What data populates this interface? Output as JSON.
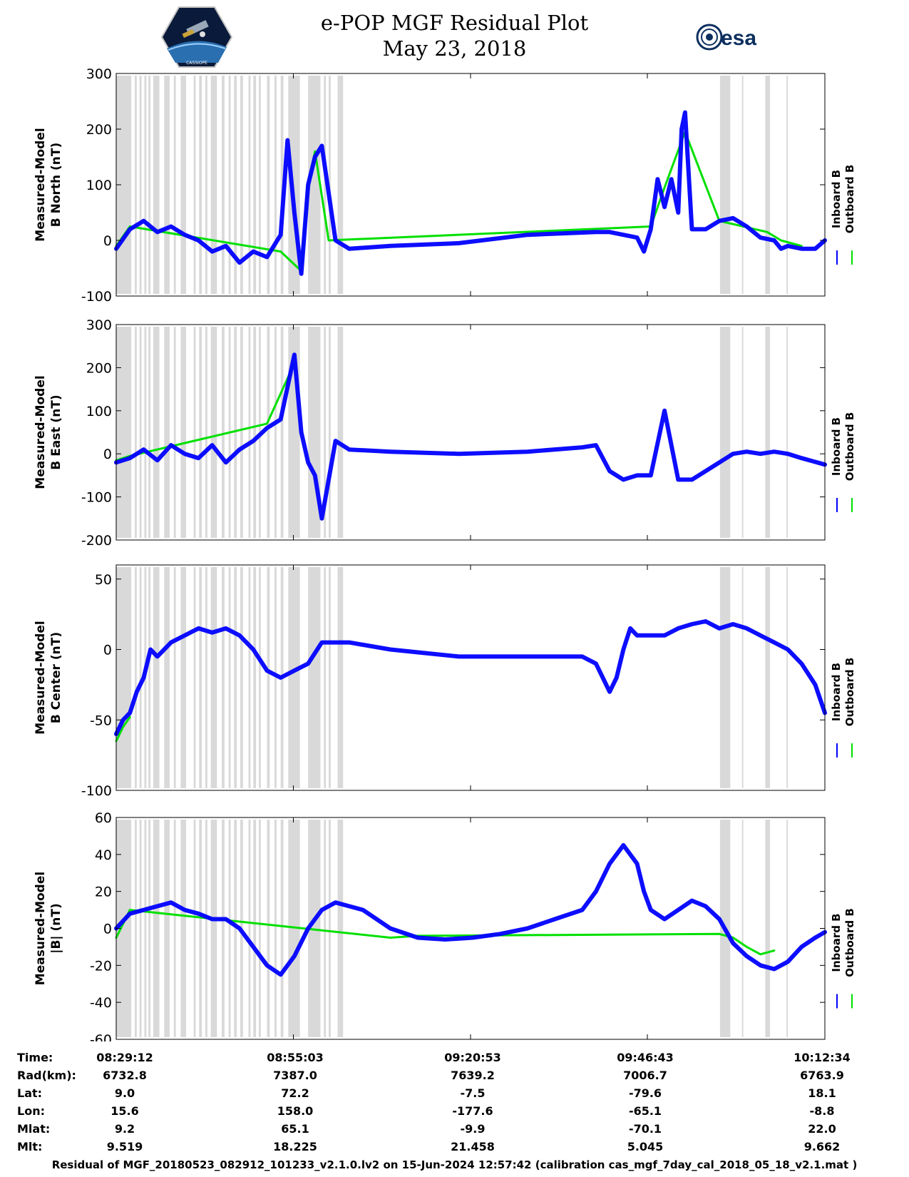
{
  "header": {
    "title_line1": "e-POP MGF Residual Plot",
    "title_line2": "May 23, 2018",
    "satellite_logo_caption": "CASSIOPE",
    "esa_logo_text": "esa"
  },
  "chart_data": [
    {
      "type": "line",
      "ylabel_line1": "Measured-Model",
      "ylabel_line2": "B North (nT)",
      "ylim": [
        -100,
        300
      ],
      "yticks": [
        "300",
        "200",
        "100",
        "0",
        "-100"
      ],
      "series": [
        {
          "name": "Inboard B",
          "color": "#0000ff",
          "x_minutes": [
            0,
            2,
            4,
            6,
            8,
            10,
            12,
            14,
            16,
            18,
            20,
            22,
            24,
            25,
            26,
            27,
            28,
            29,
            30,
            32,
            34,
            40,
            50,
            60,
            70,
            72,
            74,
            76,
            77,
            78,
            79,
            80,
            81,
            82,
            82.5,
            83,
            84,
            86,
            88,
            90,
            92,
            94,
            96,
            97,
            98,
            100,
            102,
            103.4
          ],
          "values": [
            -15,
            20,
            35,
            15,
            25,
            10,
            0,
            -20,
            -10,
            -40,
            -20,
            -30,
            10,
            180,
            50,
            -60,
            100,
            150,
            170,
            0,
            -15,
            -10,
            -5,
            10,
            15,
            15,
            10,
            5,
            -20,
            20,
            110,
            60,
            110,
            50,
            200,
            230,
            20,
            20,
            35,
            40,
            25,
            5,
            0,
            -15,
            -10,
            -15,
            -15,
            0
          ]
        },
        {
          "name": "Outboard B",
          "color": "#00e000",
          "x_minutes": [
            0,
            2,
            24,
            27,
            28,
            29,
            31,
            78,
            80,
            83,
            88,
            95,
            97,
            100
          ],
          "values": [
            -10,
            25,
            -20,
            -55,
            100,
            160,
            0,
            25,
            95,
            195,
            35,
            15,
            0,
            -10
          ]
        }
      ]
    },
    {
      "type": "line",
      "ylabel_line1": "Measured-Model",
      "ylabel_line2": "B East (nT)",
      "ylim": [
        -200,
        300
      ],
      "yticks": [
        "300",
        "200",
        "100",
        "0",
        "-100",
        "-200"
      ],
      "series": [
        {
          "name": "Inboard B",
          "color": "#0000ff",
          "x_minutes": [
            0,
            2,
            4,
            6,
            8,
            10,
            12,
            14,
            16,
            18,
            20,
            22,
            24,
            26,
            27,
            28,
            29,
            30,
            32,
            34,
            40,
            50,
            60,
            68,
            70,
            72,
            74,
            76,
            78,
            80,
            82,
            84,
            86,
            88,
            90,
            92,
            94,
            96,
            98,
            100,
            103.4
          ],
          "values": [
            -20,
            -10,
            10,
            -15,
            20,
            0,
            -10,
            20,
            -20,
            10,
            30,
            60,
            80,
            230,
            50,
            -20,
            -50,
            -150,
            30,
            10,
            5,
            0,
            5,
            15,
            20,
            -40,
            -60,
            -50,
            -50,
            100,
            -60,
            -60,
            -40,
            -20,
            0,
            5,
            0,
            5,
            0,
            -10,
            -25
          ]
        },
        {
          "name": "Outboard B",
          "color": "#00e000",
          "x_minutes": [
            0,
            2,
            22,
            26
          ],
          "values": [
            -15,
            -5,
            70,
            210
          ]
        }
      ]
    },
    {
      "type": "line",
      "ylabel_line1": "Measured-Model",
      "ylabel_line2": "B Center (nT)",
      "ylim": [
        -100,
        60
      ],
      "yticks": [
        "50",
        "0",
        "-50",
        "-100"
      ],
      "series": [
        {
          "name": "Inboard B",
          "color": "#0000ff",
          "x_minutes": [
            0,
            1,
            2,
            3,
            4,
            5,
            6,
            8,
            10,
            12,
            14,
            16,
            18,
            20,
            22,
            24,
            26,
            28,
            30,
            32,
            34,
            40,
            50,
            60,
            68,
            70,
            71,
            72,
            73,
            74,
            75,
            76,
            77,
            78,
            80,
            82,
            84,
            86,
            88,
            90,
            92,
            94,
            96,
            98,
            100,
            102,
            103.4
          ],
          "values": [
            -60,
            -50,
            -45,
            -30,
            -20,
            0,
            -5,
            5,
            10,
            15,
            12,
            15,
            10,
            0,
            -15,
            -20,
            -15,
            -10,
            5,
            5,
            5,
            0,
            -5,
            -5,
            -5,
            -10,
            -20,
            -30,
            -20,
            0,
            15,
            10,
            10,
            10,
            10,
            15,
            18,
            20,
            15,
            18,
            15,
            10,
            5,
            0,
            -10,
            -25,
            -45
          ]
        },
        {
          "name": "Outboard B",
          "color": "#00e000",
          "x_minutes": [
            0,
            1,
            2
          ],
          "values": [
            -65,
            -55,
            -48
          ]
        }
      ]
    },
    {
      "type": "line",
      "ylabel_line1": "Measured-Model",
      "ylabel_line2": "|B| (nT)",
      "ylim": [
        -60,
        60
      ],
      "yticks": [
        "60",
        "40",
        "20",
        "0",
        "-20",
        "-40",
        "-60"
      ],
      "series": [
        {
          "name": "Inboard B",
          "color": "#0000ff",
          "x_minutes": [
            0,
            2,
            4,
            6,
            8,
            10,
            12,
            14,
            16,
            18,
            20,
            22,
            24,
            26,
            28,
            30,
            32,
            34,
            36,
            40,
            44,
            48,
            52,
            56,
            60,
            64,
            68,
            70,
            72,
            74,
            76,
            77,
            78,
            80,
            82,
            84,
            86,
            88,
            90,
            92,
            94,
            96,
            98,
            100,
            102,
            103.4
          ],
          "values": [
            0,
            8,
            10,
            12,
            14,
            10,
            8,
            5,
            5,
            0,
            -10,
            -20,
            -25,
            -15,
            0,
            10,
            14,
            12,
            10,
            0,
            -5,
            -6,
            -5,
            -3,
            0,
            5,
            10,
            20,
            35,
            45,
            35,
            20,
            10,
            5,
            10,
            15,
            12,
            5,
            -8,
            -15,
            -20,
            -22,
            -18,
            -10,
            -5,
            -2
          ]
        },
        {
          "name": "Outboard B",
          "color": "#00e000",
          "x_minutes": [
            0,
            2,
            40,
            44,
            88,
            90,
            92,
            94,
            96
          ],
          "values": [
            -5,
            10,
            -5,
            -4,
            -3,
            -5,
            -10,
            -14,
            -12
          ]
        }
      ]
    }
  ],
  "legend": {
    "inboard_label": "Inboard B",
    "outboard_label": "Outboard B",
    "inboard_color": "#0000ff",
    "outboard_color": "#00e000"
  },
  "x_axis": {
    "range_minutes": [
      0,
      103.4
    ],
    "tick_minutes": [
      0,
      25.85,
      51.7,
      77.5,
      103.4
    ]
  },
  "shaded_intervals_minutes": [
    [
      0,
      2.2
    ],
    [
      2.7,
      3.0
    ],
    [
      3.4,
      3.7
    ],
    [
      4.1,
      4.4
    ],
    [
      4.7,
      5.0
    ],
    [
      5.4,
      6.3
    ],
    [
      7.0,
      7.8
    ],
    [
      8.4,
      8.7
    ],
    [
      9.4,
      10.2
    ],
    [
      11.3,
      11.6
    ],
    [
      12.1,
      12.5
    ],
    [
      13.0,
      13.3
    ],
    [
      13.8,
      14.7
    ],
    [
      15.4,
      15.8
    ],
    [
      16.4,
      16.7
    ],
    [
      17.2,
      17.6
    ],
    [
      18.1,
      18.5
    ],
    [
      19.3,
      19.6
    ],
    [
      20.0,
      20.4
    ],
    [
      20.8,
      21.1
    ],
    [
      22.0,
      22.4
    ],
    [
      23.1,
      23.4
    ],
    [
      24.0,
      24.4
    ],
    [
      25.1,
      26.8
    ],
    [
      28.0,
      29.8
    ],
    [
      30.3,
      30.6
    ],
    [
      31.0,
      31.3
    ],
    [
      32.3,
      33.1
    ],
    [
      88.1,
      89.6
    ],
    [
      91.3,
      91.5
    ],
    [
      94.7,
      95.4
    ],
    [
      97.8,
      98.0
    ]
  ],
  "info_table": {
    "labels": [
      "Time:",
      "Rad(km):",
      "Lat:",
      "Lon:",
      "Mlat:",
      "Mlt:"
    ],
    "columns": [
      {
        "time": "08:29:12",
        "rad": "6732.8",
        "lat": "9.0",
        "lon": "15.6",
        "mlat": "9.2",
        "mlt": "9.519"
      },
      {
        "time": "08:55:03",
        "rad": "7387.0",
        "lat": "72.2",
        "lon": "158.0",
        "mlat": "65.1",
        "mlt": "18.225"
      },
      {
        "time": "09:20:53",
        "rad": "7639.2",
        "lat": "-7.5",
        "lon": "-177.6",
        "mlat": "-9.9",
        "mlt": "21.458"
      },
      {
        "time": "09:46:43",
        "rad": "7006.7",
        "lat": "-79.6",
        "lon": "-65.1",
        "mlat": "-70.1",
        "mlt": "5.045"
      },
      {
        "time": "10:12:34",
        "rad": "6763.9",
        "lat": "18.1",
        "lon": "-8.8",
        "mlat": "22.0",
        "mlt": "9.662"
      }
    ]
  },
  "footer": {
    "caption": "Residual of MGF_20180523_082912_101233_v2.1.0.lv2 on 15-Jun-2024 12:57:42 (calibration cas_mgf_7day_cal_2018_05_18_v2.1.mat )"
  }
}
